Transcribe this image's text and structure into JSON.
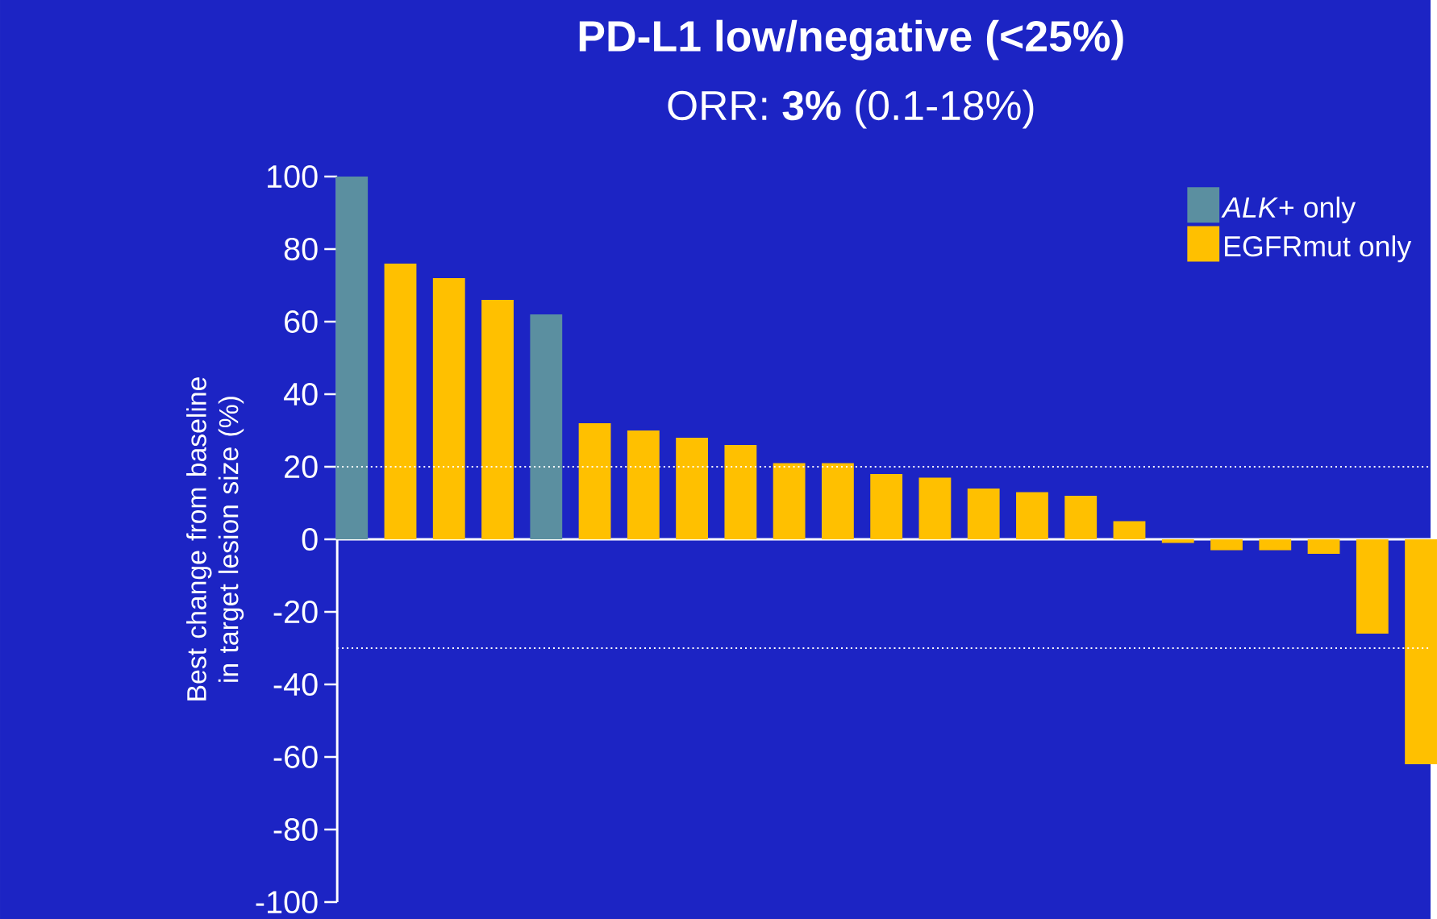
{
  "chart_data": {
    "type": "bar",
    "title": "PD-L1 low/negative (<25%)",
    "subtitle": "ORR: **3%** (0.1-18%)",
    "ylabel": "Best change from baseline in target lesion size (%)",
    "categories": [
      null,
      null,
      null,
      null,
      null,
      null,
      null,
      null,
      null,
      null,
      null,
      null,
      null,
      null,
      null,
      null,
      null,
      null,
      null,
      null,
      null,
      null,
      null
    ],
    "series": [
      {
        "name": "*ALK*+ only",
        "color": "#5b8fa0",
        "values": [
          100,
          null,
          null,
          null,
          62,
          null,
          null,
          null,
          null,
          null,
          null,
          null,
          null,
          null,
          null,
          null,
          null,
          null,
          null,
          null,
          null,
          null,
          null
        ]
      },
      {
        "name": "EGFRmut only",
        "color": "#ffc000",
        "values": [
          null,
          76,
          72,
          66,
          null,
          32,
          30,
          28,
          26,
          21,
          21,
          18,
          17,
          14,
          13,
          12,
          5,
          -1,
          -3,
          -3,
          -4,
          -26,
          -62
        ]
      }
    ],
    "ylim": [
      -100,
      100
    ],
    "yticks": [
      -100,
      -80,
      -60,
      -40,
      -20,
      0,
      20,
      40,
      60,
      80,
      100
    ],
    "ref_lines": [
      {
        "axis": "y",
        "value": 20,
        "color": "#ffffff",
        "line_style": "dotted"
      },
      {
        "axis": "y",
        "value": -30,
        "color": "#ffffff",
        "line_style": "dotted"
      }
    ],
    "legend": "top right",
    "grid": false
  }
}
